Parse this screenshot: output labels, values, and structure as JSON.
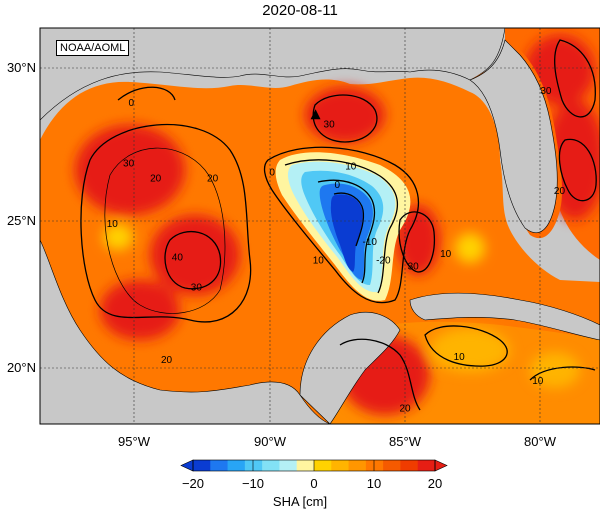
{
  "title": "2020-08-11",
  "source_label": "NOAA/AOML",
  "map": {
    "lat_ticks": [
      "30°N",
      "25°N",
      "20°N"
    ],
    "lon_ticks": [
      "95°W",
      "90°W",
      "85°W",
      "80°W"
    ],
    "lon_range": [
      -98,
      -78
    ],
    "lat_range": [
      18,
      31
    ],
    "contour_labels": [
      {
        "text": "0",
        "lon": -95.1,
        "lat": 28.8
      },
      {
        "text": "30",
        "lon": -95.2,
        "lat": 26.8
      },
      {
        "text": "20",
        "lon": -94.2,
        "lat": 26.3
      },
      {
        "text": "20",
        "lon": -92.1,
        "lat": 26.3
      },
      {
        "text": "10",
        "lon": -95.8,
        "lat": 24.8
      },
      {
        "text": "40",
        "lon": -93.4,
        "lat": 23.7
      },
      {
        "text": "30",
        "lon": -92.7,
        "lat": 22.7
      },
      {
        "text": "20",
        "lon": -93.8,
        "lat": 20.3
      },
      {
        "text": "30",
        "lon": -87.8,
        "lat": 28.1
      },
      {
        "text": "10",
        "lon": -87.0,
        "lat": 26.7
      },
      {
        "text": "0",
        "lon": -89.9,
        "lat": 26.5
      },
      {
        "text": "0",
        "lon": -87.5,
        "lat": 26.1
      },
      {
        "text": "-10",
        "lon": -86.3,
        "lat": 24.2
      },
      {
        "text": "-20",
        "lon": -85.8,
        "lat": 23.6
      },
      {
        "text": "10",
        "lon": -88.2,
        "lat": 23.6
      },
      {
        "text": "30",
        "lon": -84.7,
        "lat": 23.4
      },
      {
        "text": "10",
        "lon": -83.5,
        "lat": 23.8
      },
      {
        "text": "10",
        "lon": -83.0,
        "lat": 20.4
      },
      {
        "text": "10",
        "lon": -80.1,
        "lat": 19.6
      },
      {
        "text": "20",
        "lon": -85.0,
        "lat": 18.7
      },
      {
        "text": "30",
        "lon": -79.8,
        "lat": 29.2
      },
      {
        "text": "20",
        "lon": -79.3,
        "lat": 25.9
      }
    ],
    "marker": {
      "shape": "triangle",
      "lon": -88.3,
      "lat": 28.5
    }
  },
  "colorbar": {
    "ticks": [
      "−20",
      "−10",
      "0",
      "10",
      "20"
    ],
    "unit_label": "SHA [cm]",
    "range": [
      -20,
      20
    ],
    "colors": [
      "#0a3cd2",
      "#1e78f0",
      "#28a5f5",
      "#50c8f5",
      "#82e1f5",
      "#b4f0f5",
      "#fff5a0",
      "#ffd200",
      "#ffb400",
      "#ff9600",
      "#ff7800",
      "#f55a00",
      "#f03c00",
      "#e61e14"
    ]
  },
  "colors": {
    "land": "#c8c8c8",
    "ocean_base": "#ff7a00",
    "frame": "#000000"
  }
}
